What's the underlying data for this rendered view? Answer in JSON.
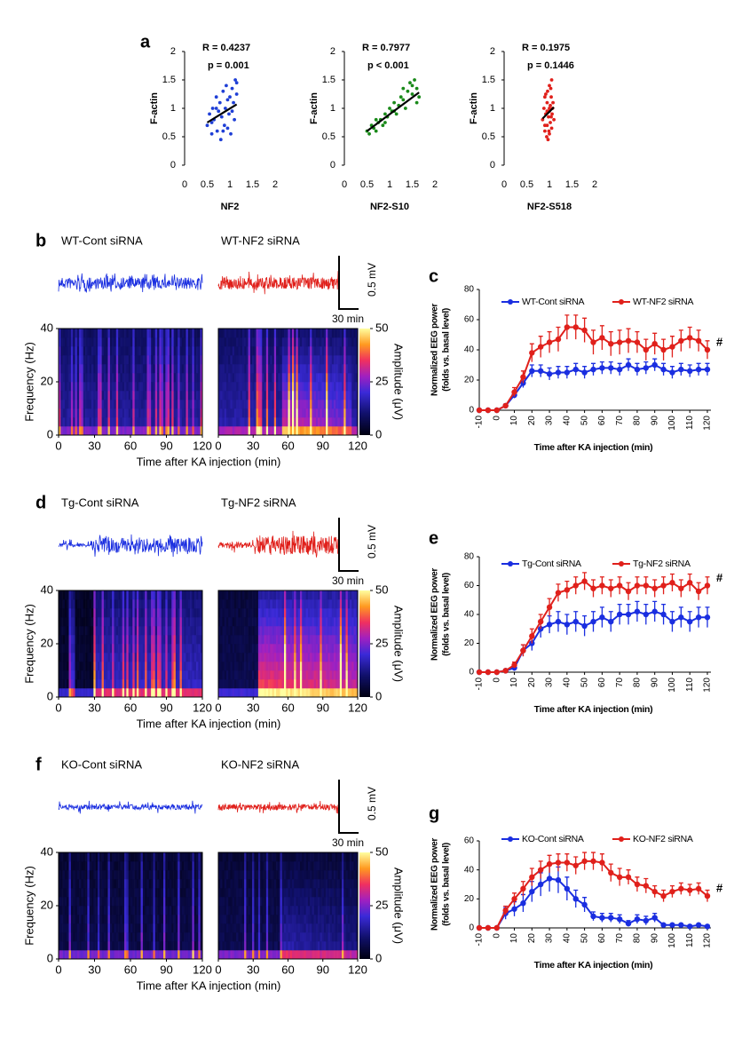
{
  "chart_data": [
    {
      "type": "scatter",
      "panel": "a",
      "stats": [
        "R = 0.4237",
        "p = 0.001"
      ],
      "xlabel": "NF2",
      "ylabel": "F-actin",
      "color": "#1f3fd6",
      "xlim": [
        0,
        2
      ],
      "ylim": [
        0,
        2
      ],
      "xticks": [
        0,
        0.5,
        1,
        1.5,
        2
      ],
      "yticks": [
        0,
        0.5,
        1,
        1.5,
        2
      ],
      "x": [
        0.5,
        0.55,
        0.6,
        0.62,
        0.65,
        0.7,
        0.72,
        0.75,
        0.78,
        0.8,
        0.82,
        0.85,
        0.88,
        0.9,
        0.92,
        0.95,
        0.98,
        1.0,
        1.02,
        1.05,
        1.08,
        1.1,
        1.12,
        1.15,
        0.6,
        0.7,
        0.85,
        0.95,
        1.05,
        1.15
      ],
      "y": [
        0.7,
        0.9,
        0.55,
        1.0,
        0.8,
        1.2,
        0.6,
        0.95,
        1.1,
        0.45,
        0.85,
        1.3,
        0.7,
        1.0,
        1.4,
        0.65,
        0.9,
        1.2,
        0.55,
        1.35,
        1.1,
        0.8,
        1.5,
        1.25,
        0.75,
        1.0,
        0.6,
        1.15,
        0.95,
        1.45
      ],
      "fit": {
        "x": [
          0.5,
          1.15
        ],
        "y": [
          0.75,
          1.07
        ]
      }
    },
    {
      "type": "scatter",
      "stats": [
        "R = 0.7977",
        "p < 0.001"
      ],
      "xlabel": "NF2-S10",
      "ylabel": "F-actin",
      "color": "#1a8a1a",
      "xlim": [
        0,
        2
      ],
      "ylim": [
        0,
        2
      ],
      "xticks": [
        0,
        0.5,
        1,
        1.5,
        2
      ],
      "yticks": [
        0,
        0.5,
        1,
        1.5,
        2
      ],
      "x": [
        0.5,
        0.55,
        0.6,
        0.65,
        0.7,
        0.75,
        0.8,
        0.85,
        0.9,
        0.95,
        1.0,
        1.05,
        1.1,
        1.15,
        1.2,
        1.25,
        1.3,
        1.35,
        1.4,
        1.45,
        1.5,
        1.55,
        1.6,
        1.65,
        0.7,
        0.9,
        1.1,
        1.3,
        1.5,
        1.6
      ],
      "y": [
        0.6,
        0.55,
        0.7,
        0.65,
        0.6,
        0.75,
        0.8,
        0.7,
        0.9,
        0.85,
        1.0,
        0.95,
        1.1,
        0.9,
        1.05,
        1.2,
        1.15,
        1.0,
        1.3,
        1.45,
        1.25,
        1.5,
        1.35,
        1.2,
        0.8,
        0.75,
        0.95,
        1.35,
        1.4,
        1.1
      ],
      "fit": {
        "x": [
          0.5,
          1.65
        ],
        "y": [
          0.6,
          1.28
        ]
      }
    },
    {
      "type": "scatter",
      "stats": [
        "R = 0.1975",
        "p = 0.1446"
      ],
      "xlabel": "NF2-S518",
      "ylabel": "F-actin",
      "color": "#e0201b",
      "xlim": [
        0,
        2
      ],
      "ylim": [
        0,
        2
      ],
      "xticks": [
        0,
        0.5,
        1,
        1.5,
        2
      ],
      "yticks": [
        0,
        0.5,
        1,
        1.5,
        2
      ],
      "x": [
        0.85,
        0.88,
        0.9,
        0.9,
        0.92,
        0.94,
        0.95,
        0.95,
        0.96,
        0.98,
        1.0,
        1.0,
        1.0,
        1.02,
        1.02,
        1.04,
        1.05,
        1.05,
        1.06,
        1.08,
        1.1,
        0.92,
        0.97,
        1.0,
        1.03,
        0.9,
        1.07,
        0.99,
        0.95,
        1.04
      ],
      "y": [
        0.8,
        1.0,
        0.6,
        1.2,
        0.9,
        0.5,
        1.1,
        0.7,
        1.3,
        0.85,
        0.95,
        1.4,
        0.55,
        1.05,
        0.75,
        1.2,
        0.65,
        1.5,
        0.9,
        1.1,
        0.8,
        1.25,
        0.45,
        1.0,
        1.35,
        0.7,
        1.0,
        0.6,
        0.95,
        0.85
      ],
      "fit": {
        "x": [
          0.85,
          1.1
        ],
        "y": [
          0.82,
          1.02
        ]
      }
    },
    {
      "type": "spectrogram",
      "panel": "b",
      "panels": [
        {
          "title": "WT-Cont siRNA",
          "color": "#1a2ee0"
        },
        {
          "title": "WT-NF2 siRNA",
          "color": "#e0201b"
        }
      ],
      "scale_bar": [
        "0.5 mV",
        "30 min"
      ],
      "xlabel": "Time after KA injection (min)",
      "ylabel": "Frequency (Hz)",
      "xlim": [
        0,
        120
      ],
      "xticks": [
        0,
        30,
        60,
        90,
        120
      ],
      "ylim": [
        0,
        40
      ],
      "yticks": [
        0,
        20,
        40
      ],
      "colorbar": {
        "label": "Amplitude (μV)",
        "lim": [
          0,
          50
        ],
        "ticks": [
          0,
          25,
          50
        ]
      }
    },
    {
      "type": "line",
      "panel": "c",
      "ylabel": [
        "Normalized EEG power",
        "(folds vs. basal level)"
      ],
      "xlabel": "Time after KA injection (min)",
      "annotation": "#",
      "xlim": [
        -10,
        120
      ],
      "ylim": [
        0,
        80
      ],
      "xticks": [
        -10,
        0,
        10,
        20,
        30,
        40,
        50,
        60,
        70,
        80,
        90,
        100,
        110,
        120
      ],
      "yticks": [
        0,
        20,
        40,
        60,
        80
      ],
      "x": [
        -10,
        -5,
        0,
        5,
        10,
        15,
        20,
        25,
        30,
        35,
        40,
        45,
        50,
        55,
        60,
        65,
        70,
        75,
        80,
        85,
        90,
        95,
        100,
        105,
        110,
        115,
        120
      ],
      "series": [
        {
          "name": "WT-Cont siRNA",
          "color": "#1a2ee0",
          "values": [
            0,
            0,
            0,
            3,
            10,
            18,
            26,
            26,
            24,
            25,
            25,
            27,
            25,
            27,
            28,
            28,
            27,
            30,
            27,
            28,
            30,
            27,
            25,
            27,
            26,
            27,
            27
          ],
          "errors": [
            0,
            0,
            0,
            1,
            2,
            3,
            4,
            4,
            4,
            4,
            4,
            4,
            4,
            4,
            4,
            4,
            4,
            4,
            4,
            4,
            4,
            4,
            4,
            4,
            4,
            4,
            4
          ]
        },
        {
          "name": "WT-NF2 siRNA",
          "color": "#e0201b",
          "values": [
            0,
            0,
            0,
            3,
            12,
            22,
            38,
            42,
            45,
            47,
            55,
            55,
            53,
            45,
            48,
            44,
            45,
            46,
            45,
            40,
            44,
            40,
            42,
            46,
            48,
            46,
            40
          ],
          "errors": [
            0,
            0,
            0,
            1,
            3,
            4,
            6,
            7,
            7,
            8,
            8,
            8,
            8,
            8,
            8,
            8,
            8,
            8,
            7,
            7,
            7,
            7,
            7,
            7,
            7,
            7,
            6
          ]
        }
      ]
    },
    {
      "type": "spectrogram",
      "panel": "d",
      "panels": [
        {
          "title": "Tg-Cont siRNA",
          "color": "#1a2ee0"
        },
        {
          "title": "Tg-NF2 siRNA",
          "color": "#e0201b"
        }
      ],
      "scale_bar": [
        "0.5 mV",
        "30 min"
      ],
      "xlabel": "Time after KA injection (min)",
      "ylabel": "Frequency (Hz)",
      "xlim": [
        0,
        120
      ],
      "xticks": [
        0,
        30,
        60,
        90,
        120
      ],
      "ylim": [
        0,
        40
      ],
      "yticks": [
        0,
        20,
        40
      ],
      "colorbar": {
        "label": "Amplitude (μV)",
        "lim": [
          0,
          50
        ],
        "ticks": [
          0,
          25,
          50
        ]
      }
    },
    {
      "type": "line",
      "panel": "e",
      "ylabel": [
        "Normalized EEG power",
        "(folds vs. basal level)"
      ],
      "xlabel": "Time after KA injection (min)",
      "annotation": "#",
      "xlim": [
        -10,
        120
      ],
      "ylim": [
        0,
        80
      ],
      "xticks": [
        -10,
        0,
        10,
        20,
        30,
        40,
        50,
        60,
        70,
        80,
        90,
        100,
        110,
        120
      ],
      "yticks": [
        0,
        20,
        40,
        60,
        80
      ],
      "x": [
        -10,
        -5,
        0,
        5,
        10,
        15,
        20,
        25,
        30,
        35,
        40,
        45,
        50,
        55,
        60,
        65,
        70,
        75,
        80,
        85,
        90,
        95,
        100,
        105,
        110,
        115,
        120
      ],
      "series": [
        {
          "name": "Tg-Cont siRNA",
          "color": "#1a2ee0",
          "values": [
            0,
            0,
            0,
            1,
            3,
            15,
            20,
            30,
            33,
            35,
            33,
            35,
            32,
            35,
            38,
            35,
            40,
            40,
            42,
            40,
            42,
            40,
            35,
            38,
            35,
            38,
            38
          ],
          "errors": [
            0,
            0,
            0,
            1,
            2,
            4,
            5,
            6,
            6,
            7,
            7,
            7,
            7,
            7,
            7,
            7,
            7,
            7,
            7,
            7,
            7,
            7,
            7,
            7,
            7,
            7,
            7
          ]
        },
        {
          "name": "Tg-NF2 siRNA",
          "color": "#e0201b",
          "values": [
            0,
            0,
            0,
            1,
            5,
            15,
            25,
            35,
            45,
            55,
            57,
            60,
            63,
            58,
            60,
            58,
            60,
            56,
            60,
            60,
            58,
            60,
            62,
            58,
            62,
            56,
            60
          ],
          "errors": [
            0,
            0,
            0,
            1,
            2,
            4,
            5,
            5,
            6,
            6,
            6,
            6,
            6,
            6,
            6,
            6,
            6,
            6,
            6,
            6,
            6,
            6,
            6,
            6,
            6,
            6,
            6
          ]
        }
      ]
    },
    {
      "type": "spectrogram",
      "panel": "f",
      "panels": [
        {
          "title": "KO-Cont siRNA",
          "color": "#1a2ee0"
        },
        {
          "title": "KO-NF2 siRNA",
          "color": "#e0201b"
        }
      ],
      "scale_bar": [
        "0.5 mV",
        "30 min"
      ],
      "xlabel": "Time after KA injection (min)",
      "ylabel": "Frequency (Hz)",
      "xlim": [
        0,
        120
      ],
      "xticks": [
        0,
        30,
        60,
        90,
        120
      ],
      "ylim": [
        0,
        40
      ],
      "yticks": [
        0,
        20,
        40
      ],
      "colorbar": {
        "label": "Amplitude (μV)",
        "lim": [
          0,
          50
        ],
        "ticks": [
          0,
          25,
          50
        ]
      }
    },
    {
      "type": "line",
      "panel": "g",
      "ylabel": [
        "Normalized EEG power",
        "(folds vs. basal level)"
      ],
      "xlabel": "Time after KA injection (min)",
      "annotation": "#",
      "xlim": [
        -10,
        120
      ],
      "ylim": [
        0,
        60
      ],
      "xticks": [
        -10,
        0,
        10,
        20,
        30,
        40,
        50,
        60,
        70,
        80,
        90,
        100,
        110,
        120
      ],
      "yticks": [
        0,
        20,
        40,
        60
      ],
      "x": [
        -10,
        -5,
        0,
        5,
        10,
        15,
        20,
        25,
        30,
        35,
        40,
        45,
        50,
        55,
        60,
        65,
        70,
        75,
        80,
        85,
        90,
        95,
        100,
        105,
        110,
        115,
        120
      ],
      "series": [
        {
          "name": "KO-Cont siRNA",
          "color": "#1a2ee0",
          "values": [
            0,
            0,
            0,
            10,
            13,
            17,
            25,
            30,
            34,
            33,
            27,
            20,
            16,
            8,
            7,
            7,
            6,
            3,
            6,
            5,
            7,
            2,
            2,
            2,
            1,
            2,
            1
          ],
          "errors": [
            0,
            0,
            0,
            4,
            5,
            6,
            7,
            8,
            9,
            9,
            8,
            6,
            5,
            3,
            3,
            3,
            3,
            2,
            3,
            3,
            3,
            1,
            1,
            1,
            1,
            1,
            1
          ]
        },
        {
          "name": "KO-NF2 siRNA",
          "color": "#e0201b",
          "values": [
            0,
            0,
            0,
            12,
            20,
            27,
            35,
            40,
            44,
            45,
            45,
            43,
            46,
            46,
            45,
            38,
            35,
            35,
            30,
            29,
            25,
            22,
            25,
            27,
            26,
            27,
            22
          ],
          "errors": [
            0,
            0,
            0,
            3,
            4,
            5,
            6,
            6,
            6,
            6,
            6,
            6,
            6,
            6,
            6,
            6,
            6,
            5,
            5,
            5,
            4,
            4,
            4,
            4,
            4,
            4,
            4
          ]
        }
      ]
    }
  ]
}
